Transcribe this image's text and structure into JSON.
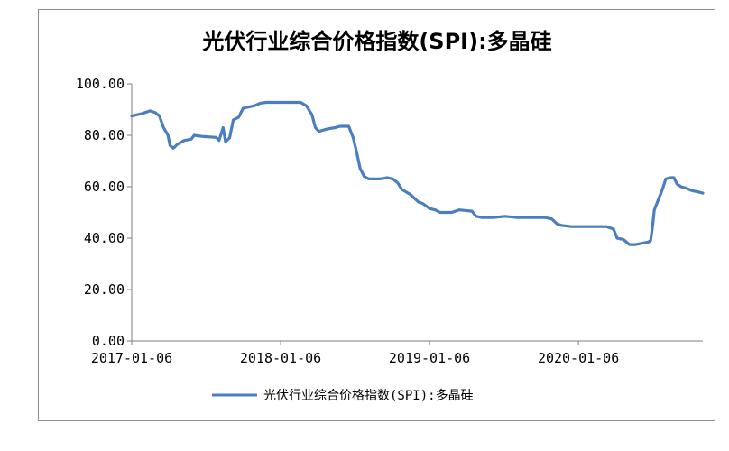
{
  "chart_data": {
    "type": "line",
    "title": "光伏行业综合价格指数(SPI):多晶硅",
    "xlabel": "",
    "ylabel": "",
    "ylim": [
      0,
      100
    ],
    "y_ticks": [
      "0.00",
      "20.00",
      "40.00",
      "60.00",
      "80.00",
      "100.00"
    ],
    "x_ticks": [
      "2017-01-06",
      "2018-01-06",
      "2019-01-06",
      "2020-01-06"
    ],
    "x_range": [
      "2017-01-06",
      "2020-11-06"
    ],
    "grid": false,
    "legend_position": "bottom",
    "series": [
      {
        "name": "光伏行业综合价格指数(SPI):多晶硅",
        "color": "#4a7ebf",
        "points": [
          [
            "2017-01-06",
            87.5
          ],
          [
            "2017-02-01",
            88.5
          ],
          [
            "2017-02-20",
            89.5
          ],
          [
            "2017-03-05",
            88.8
          ],
          [
            "2017-03-15",
            87.5
          ],
          [
            "2017-03-25",
            83
          ],
          [
            "2017-04-05",
            80
          ],
          [
            "2017-04-10",
            76
          ],
          [
            "2017-04-18",
            75
          ],
          [
            "2017-04-28",
            76.5
          ],
          [
            "2017-05-15",
            78
          ],
          [
            "2017-06-01",
            78.5
          ],
          [
            "2017-06-08",
            80
          ],
          [
            "2017-07-01",
            79.5
          ],
          [
            "2017-08-01",
            79.2
          ],
          [
            "2017-08-08",
            78
          ],
          [
            "2017-08-18",
            83
          ],
          [
            "2017-08-24",
            77.5
          ],
          [
            "2017-09-03",
            79
          ],
          [
            "2017-09-12",
            86
          ],
          [
            "2017-09-25",
            87
          ],
          [
            "2017-10-06",
            90.5
          ],
          [
            "2017-10-20",
            91
          ],
          [
            "2017-11-03",
            91.5
          ],
          [
            "2017-11-17",
            92.5
          ],
          [
            "2017-12-01",
            92.8
          ],
          [
            "2018-01-06",
            92.8
          ],
          [
            "2018-02-24",
            92.8
          ],
          [
            "2018-03-10",
            91.5
          ],
          [
            "2018-03-24",
            88
          ],
          [
            "2018-04-01",
            83
          ],
          [
            "2018-04-10",
            81.5
          ],
          [
            "2018-04-20",
            82
          ],
          [
            "2018-05-01",
            82.5
          ],
          [
            "2018-05-20",
            83
          ],
          [
            "2018-06-01",
            83.5
          ],
          [
            "2018-06-22",
            83.5
          ],
          [
            "2018-07-03",
            79
          ],
          [
            "2018-07-12",
            73
          ],
          [
            "2018-07-20",
            67
          ],
          [
            "2018-07-30",
            64
          ],
          [
            "2018-08-10",
            63
          ],
          [
            "2018-09-05",
            63
          ],
          [
            "2018-09-25",
            63.5
          ],
          [
            "2018-10-08",
            63
          ],
          [
            "2018-10-20",
            61.5
          ],
          [
            "2018-10-30",
            59
          ],
          [
            "2018-11-20",
            57
          ],
          [
            "2018-12-10",
            54
          ],
          [
            "2018-12-20",
            53.5
          ],
          [
            "2019-01-06",
            51.5
          ],
          [
            "2019-01-20",
            51
          ],
          [
            "2019-02-01",
            50
          ],
          [
            "2019-03-01",
            50
          ],
          [
            "2019-03-20",
            51
          ],
          [
            "2019-04-20",
            50.5
          ],
          [
            "2019-04-30",
            48.5
          ],
          [
            "2019-05-15",
            48
          ],
          [
            "2019-06-10",
            48
          ],
          [
            "2019-07-10",
            48.5
          ],
          [
            "2019-08-10",
            48
          ],
          [
            "2019-09-10",
            48
          ],
          [
            "2019-10-15",
            48
          ],
          [
            "2019-11-01",
            47.5
          ],
          [
            "2019-11-15",
            45.5
          ],
          [
            "2019-11-25",
            45
          ],
          [
            "2019-12-20",
            44.5
          ],
          [
            "2020-01-06",
            44.5
          ],
          [
            "2020-02-20",
            44.5
          ],
          [
            "2020-03-15",
            44.5
          ],
          [
            "2020-04-01",
            43.5
          ],
          [
            "2020-04-10",
            40
          ],
          [
            "2020-04-25",
            39.5
          ],
          [
            "2020-05-10",
            37.5
          ],
          [
            "2020-05-25",
            37.5
          ],
          [
            "2020-06-10",
            38
          ],
          [
            "2020-06-25",
            38.5
          ],
          [
            "2020-07-01",
            39
          ],
          [
            "2020-07-06",
            45
          ],
          [
            "2020-07-10",
            51
          ],
          [
            "2020-07-20",
            55
          ],
          [
            "2020-07-30",
            59
          ],
          [
            "2020-08-07",
            63
          ],
          [
            "2020-08-18",
            63.5
          ],
          [
            "2020-08-27",
            63.5
          ],
          [
            "2020-09-04",
            61
          ],
          [
            "2020-09-14",
            60
          ],
          [
            "2020-09-25",
            59.5
          ],
          [
            "2020-10-10",
            58.5
          ],
          [
            "2020-10-25",
            58
          ],
          [
            "2020-11-06",
            57.5
          ]
        ]
      }
    ]
  }
}
